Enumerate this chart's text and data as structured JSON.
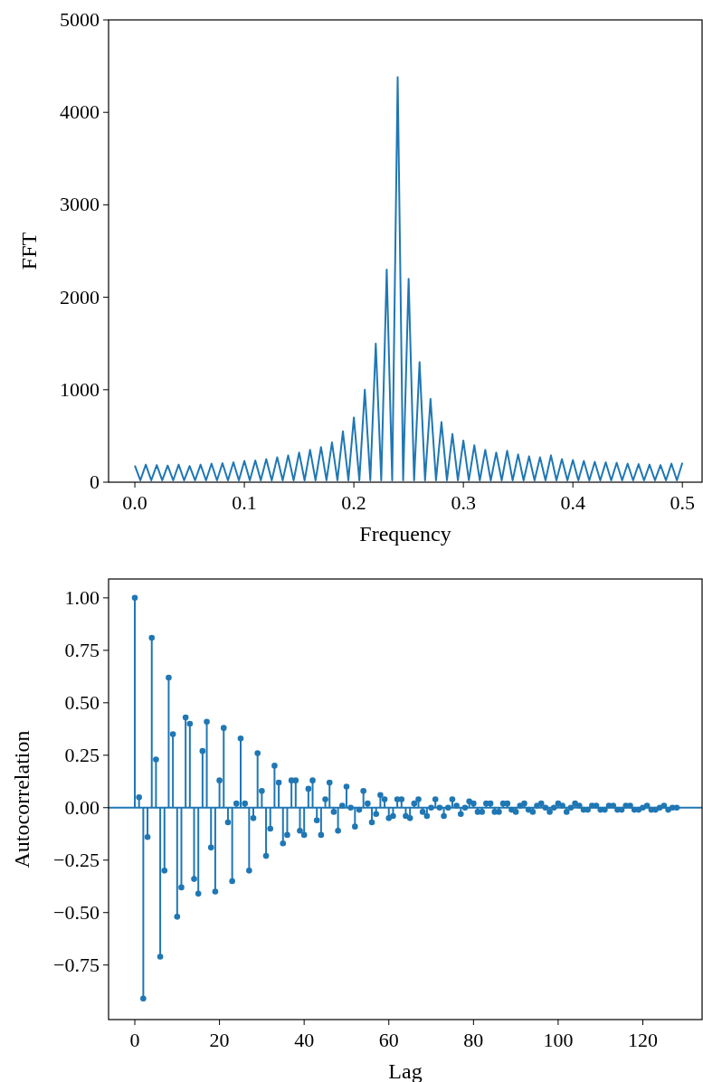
{
  "chart_data": [
    {
      "type": "line",
      "xlabel": "Frequency",
      "ylabel": "FFT",
      "xlim": [
        -0.024,
        0.518
      ],
      "ylim": [
        0,
        5000
      ],
      "xticks": [
        {
          "value": 0,
          "label": "0.0"
        },
        0.1,
        0.2,
        0.3,
        0.4,
        0.5
      ],
      "yticks": [
        0,
        1000,
        2000,
        3000,
        4000,
        5000
      ],
      "series": [
        {
          "color": "#1f77b4",
          "x": [
            0,
            0.005,
            0.01,
            0.015,
            0.02,
            0.025,
            0.03,
            0.035,
            0.04,
            0.045,
            0.05,
            0.055,
            0.06,
            0.065,
            0.07,
            0.075,
            0.08,
            0.085,
            0.09,
            0.095,
            0.1,
            0.105,
            0.11,
            0.115,
            0.12,
            0.125,
            0.13,
            0.135,
            0.14,
            0.145,
            0.15,
            0.155,
            0.16,
            0.165,
            0.17,
            0.175,
            0.18,
            0.185,
            0.19,
            0.195,
            0.2,
            0.205,
            0.21,
            0.215,
            0.22,
            0.225,
            0.23,
            0.235,
            0.24,
            0.245,
            0.25,
            0.255,
            0.26,
            0.265,
            0.27,
            0.275,
            0.28,
            0.285,
            0.29,
            0.295,
            0.3,
            0.305,
            0.31,
            0.315,
            0.32,
            0.325,
            0.33,
            0.335,
            0.34,
            0.345,
            0.35,
            0.355,
            0.36,
            0.365,
            0.37,
            0.375,
            0.38,
            0.385,
            0.39,
            0.395,
            0.4,
            0.405,
            0.41,
            0.415,
            0.42,
            0.425,
            0.43,
            0.435,
            0.44,
            0.445,
            0.45,
            0.455,
            0.46,
            0.465,
            0.47,
            0.475,
            0.48,
            0.485,
            0.49,
            0.495,
            0.5
          ],
          "values": [
            180,
            20,
            190,
            20,
            185,
            20,
            180,
            20,
            190,
            20,
            175,
            20,
            190,
            20,
            200,
            20,
            205,
            20,
            215,
            20,
            230,
            20,
            235,
            20,
            250,
            20,
            270,
            20,
            290,
            20,
            320,
            20,
            350,
            20,
            380,
            20,
            430,
            20,
            550,
            20,
            700,
            20,
            1000,
            20,
            1500,
            20,
            2300,
            20,
            4380,
            20,
            2200,
            20,
            1300,
            20,
            900,
            20,
            650,
            20,
            520,
            20,
            450,
            20,
            400,
            20,
            350,
            20,
            320,
            20,
            340,
            20,
            300,
            20,
            280,
            20,
            270,
            20,
            290,
            20,
            250,
            20,
            240,
            20,
            230,
            20,
            220,
            20,
            215,
            20,
            210,
            20,
            200,
            20,
            195,
            20,
            190,
            20,
            185,
            20,
            200,
            20,
            210
          ]
        }
      ]
    },
    {
      "type": "lollipop",
      "xlabel": "Lag",
      "ylabel": "Autocorrelation",
      "xlim": [
        -6.2,
        134
      ],
      "ylim": [
        -1.01,
        1.09
      ],
      "marker": "circle",
      "xticks": [
        0,
        20,
        40,
        60,
        80,
        100,
        120
      ],
      "yticks": [
        {
          "value": -0.75,
          "label": "−0.75"
        },
        {
          "value": -0.5,
          "label": "−0.50"
        },
        {
          "value": -0.25,
          "label": "−0.25"
        },
        {
          "value": 0,
          "label": "0.00"
        },
        {
          "value": 0.25,
          "label": "0.25"
        },
        {
          "value": 0.5,
          "label": "0.50"
        },
        {
          "value": 0.75,
          "label": "0.75"
        },
        {
          "value": 1,
          "label": "1.00"
        }
      ],
      "ref_lines": [
        {
          "axis": "y",
          "value": 0,
          "color": "#1f77b4"
        }
      ],
      "x": [
        0,
        1,
        2,
        3,
        4,
        5,
        6,
        7,
        8,
        9,
        10,
        11,
        12,
        13,
        14,
        15,
        16,
        17,
        18,
        19,
        20,
        21,
        22,
        23,
        24,
        25,
        26,
        27,
        28,
        29,
        30,
        31,
        32,
        33,
        34,
        35,
        36,
        37,
        38,
        39,
        40,
        41,
        42,
        43,
        44,
        45,
        46,
        47,
        48,
        49,
        50,
        51,
        52,
        53,
        54,
        55,
        56,
        57,
        58,
        59,
        60,
        61,
        62,
        63,
        64,
        65,
        66,
        67,
        68,
        69,
        70,
        71,
        72,
        73,
        74,
        75,
        76,
        77,
        78,
        79,
        80,
        81,
        82,
        83,
        84,
        85,
        86,
        87,
        88,
        89,
        90,
        91,
        92,
        93,
        94,
        95,
        96,
        97,
        98,
        99,
        100,
        101,
        102,
        103,
        104,
        105,
        106,
        107,
        108,
        109,
        110,
        111,
        112,
        113,
        114,
        115,
        116,
        117,
        118,
        119,
        120,
        121,
        122,
        123,
        124,
        125,
        126,
        127,
        128
      ],
      "series": [
        {
          "color": "#1f77b4",
          "values": [
            1.0,
            0.05,
            -0.91,
            -0.14,
            0.81,
            0.23,
            -0.71,
            -0.3,
            0.62,
            0.35,
            -0.52,
            -0.38,
            0.43,
            0.4,
            -0.34,
            -0.41,
            0.27,
            0.41,
            -0.19,
            -0.4,
            0.13,
            0.38,
            -0.07,
            -0.35,
            0.02,
            0.33,
            0.02,
            -0.3,
            -0.05,
            0.26,
            0.08,
            -0.23,
            -0.1,
            0.2,
            0.12,
            -0.17,
            -0.13,
            0.13,
            0.13,
            -0.11,
            -0.13,
            0.09,
            0.13,
            -0.06,
            -0.13,
            0.04,
            0.12,
            -0.02,
            -0.11,
            0.01,
            0.1,
            0.0,
            -0.09,
            -0.01,
            0.08,
            0.02,
            -0.07,
            -0.03,
            0.06,
            0.04,
            -0.05,
            -0.04,
            0.04,
            0.04,
            -0.04,
            -0.05,
            0.02,
            0.04,
            -0.02,
            -0.04,
            0.0,
            0.04,
            0.0,
            -0.04,
            0.0,
            0.04,
            0.01,
            -0.03,
            0.0,
            0.03,
            0.02,
            -0.02,
            -0.02,
            0.02,
            0.02,
            -0.02,
            -0.02,
            0.02,
            0.02,
            -0.01,
            -0.02,
            0.01,
            0.02,
            -0.01,
            -0.02,
            0.01,
            0.02,
            0.0,
            -0.02,
            0.0,
            0.02,
            0.01,
            -0.02,
            0.0,
            0.02,
            0.01,
            -0.01,
            -0.01,
            0.01,
            0.01,
            -0.01,
            -0.01,
            0.01,
            0.01,
            -0.01,
            -0.01,
            0.01,
            0.01,
            -0.01,
            -0.01,
            0.0,
            0.01,
            -0.01,
            -0.01,
            0.0,
            0.01,
            -0.01,
            0.0,
            0.0
          ]
        }
      ]
    }
  ]
}
